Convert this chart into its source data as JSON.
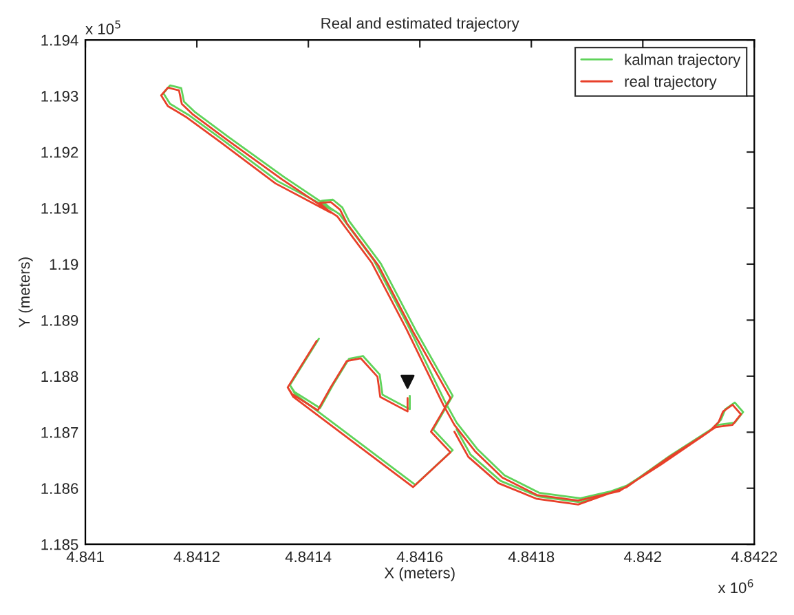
{
  "chart_data": {
    "type": "line",
    "title": "Real and estimated trajectory",
    "xlabel": "X (meters)",
    "ylabel": "Y (meters)",
    "annotations": [
      "x 10$^{5}$",
      "x 10$^{6}$"
    ],
    "xlim": [
      4.841,
      4.8422
    ],
    "xticks": [
      4.841,
      4.8412,
      4.8414,
      4.8416,
      4.8418,
      4.842,
      4.8422
    ],
    "ylim": [
      1.185,
      1.194
    ],
    "yticks": [
      1.185,
      1.186,
      1.187,
      1.188,
      1.189,
      1.19,
      1.191,
      1.192,
      1.193,
      1.194
    ],
    "grid": false,
    "legend": "top right",
    "marker": "none",
    "line_style": "solid",
    "series": [
      {
        "name": "kalman trajectory",
        "color": "#5fd35a",
        "x": [
          4.841582,
          4.841582,
          4.841533,
          4.841528,
          4.841498,
          4.841473,
          4.841444,
          4.841421,
          4.841375,
          4.841367,
          4.841419,
          4.841367,
          4.841377,
          4.841592,
          4.841659,
          4.841624,
          4.841641,
          4.841659,
          4.841592,
          4.84153,
          4.841473,
          4.841461,
          4.841444,
          4.841424,
          4.841444,
          4.841345,
          4.841246,
          4.841184,
          4.841152,
          4.84114,
          4.841152,
          4.841172,
          4.841177,
          4.841197,
          4.841258,
          4.841357,
          4.841456,
          4.841518,
          4.84158,
          4.841646,
          4.841666,
          4.841703,
          4.841752,
          4.841814,
          4.841888,
          4.841962,
          4.842036,
          4.842123,
          4.84214,
          4.842148,
          4.842165,
          4.84218,
          4.842165,
          4.842135,
          4.842049,
          4.841975,
          4.841888,
          4.841814,
          4.841745,
          4.841691,
          4.841666
        ],
        "values": [
          1.18765,
          1.18741,
          1.18767,
          1.18803,
          1.18836,
          1.18831,
          1.18784,
          1.18743,
          1.18772,
          1.18784,
          1.18867,
          1.18784,
          1.18767,
          1.18606,
          1.18668,
          1.18705,
          1.18734,
          1.18765,
          1.18883,
          1.19001,
          1.19077,
          1.19101,
          1.19115,
          1.19113,
          1.19096,
          1.19148,
          1.19222,
          1.19267,
          1.19286,
          1.19305,
          1.19319,
          1.19314,
          1.1929,
          1.19271,
          1.19226,
          1.19155,
          1.19089,
          1.19006,
          1.18888,
          1.18753,
          1.18717,
          1.1867,
          1.18623,
          1.18592,
          1.18582,
          1.18599,
          1.18646,
          1.18705,
          1.18722,
          1.18741,
          1.18753,
          1.18736,
          1.18717,
          1.18713,
          1.18658,
          1.18606,
          1.18575,
          1.18585,
          1.18613,
          1.1866,
          1.18705
        ]
      },
      {
        "name": "real trajectory",
        "color": "#e8402a",
        "x": [
          4.841578,
          4.841578,
          4.841529,
          4.841524,
          4.841494,
          4.841469,
          4.84144,
          4.841417,
          4.841371,
          4.841363,
          4.841415,
          4.841363,
          4.841373,
          4.841588,
          4.841655,
          4.84162,
          4.841637,
          4.841655,
          4.841588,
          4.841526,
          4.841469,
          4.841457,
          4.84144,
          4.84142,
          4.84144,
          4.841341,
          4.841242,
          4.84118,
          4.841148,
          4.841136,
          4.841148,
          4.841168,
          4.841173,
          4.841193,
          4.841254,
          4.841353,
          4.841452,
          4.841514,
          4.841576,
          4.841642,
          4.841662,
          4.841699,
          4.841748,
          4.84181,
          4.841884,
          4.841958,
          4.842032,
          4.842119,
          4.842136,
          4.842144,
          4.842161,
          4.842176,
          4.842161,
          4.842131,
          4.842045,
          4.841971,
          4.841884,
          4.84181,
          4.841741,
          4.841687,
          4.841662
        ],
        "values": [
          1.18761,
          1.18737,
          1.18763,
          1.18799,
          1.18832,
          1.18827,
          1.1878,
          1.18739,
          1.18768,
          1.1878,
          1.18863,
          1.1878,
          1.18763,
          1.18602,
          1.18664,
          1.18701,
          1.1873,
          1.18761,
          1.18879,
          1.18997,
          1.19073,
          1.19097,
          1.19111,
          1.19109,
          1.19092,
          1.19144,
          1.19218,
          1.19263,
          1.19282,
          1.19301,
          1.19315,
          1.1931,
          1.19286,
          1.19267,
          1.19222,
          1.19151,
          1.19085,
          1.19002,
          1.18884,
          1.18749,
          1.18713,
          1.18666,
          1.18619,
          1.18588,
          1.18578,
          1.18595,
          1.18642,
          1.18701,
          1.18718,
          1.18737,
          1.18749,
          1.18732,
          1.18713,
          1.18709,
          1.18654,
          1.18602,
          1.18571,
          1.18581,
          1.18609,
          1.18656,
          1.18701
        ]
      },
      {
        "type": "scatter",
        "marker": "triangle",
        "color": "#111111",
        "x": [
          4.841578
        ],
        "values": [
          1.1879
        ]
      }
    ]
  }
}
